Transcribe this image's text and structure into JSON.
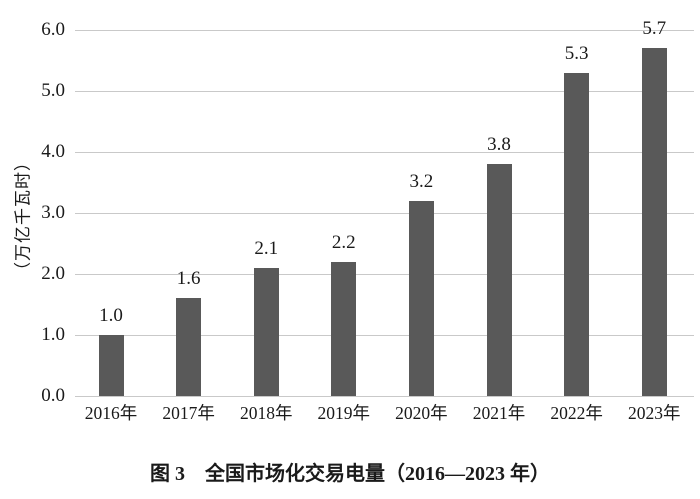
{
  "caption": "图 3　全国市场化交易电量（2016—2023 年）",
  "chart_data": {
    "type": "bar",
    "title": "图 3 全国市场化交易电量（2016—2023 年）",
    "categories": [
      "2016年",
      "2017年",
      "2018年",
      "2019年",
      "2020年",
      "2021年",
      "2022年",
      "2023年"
    ],
    "values": [
      1.0,
      1.6,
      2.1,
      2.2,
      3.2,
      3.8,
      5.3,
      5.7
    ],
    "data_labels": [
      "1.0",
      "1.6",
      "2.1",
      "2.2",
      "3.2",
      "3.8",
      "5.3",
      "5.7"
    ],
    "xlabel": "",
    "ylabel": "（万亿千瓦时）",
    "yticks": [
      "0.0",
      "1.0",
      "2.0",
      "3.0",
      "4.0",
      "5.0",
      "6.0"
    ],
    "ylim": [
      0,
      6
    ],
    "grid": "horizontal",
    "legend": "none",
    "bar_color": "#595959",
    "gridline_color": "#c9c9c9",
    "text_color": "#1a1a1a"
  }
}
